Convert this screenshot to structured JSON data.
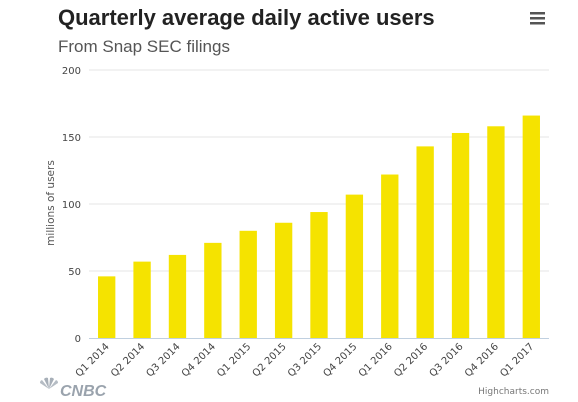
{
  "header": {
    "title": "Quarterly average daily active users",
    "subtitle": "From Snap SEC filings",
    "menu_icon": "hamburger-menu-icon"
  },
  "footer": {
    "brand": "CNBC",
    "brand_icon": "peacock-logo-icon",
    "credit": "Highcharts.com"
  },
  "colors": {
    "bar": "#f5e300",
    "grid": "#e6e6e6",
    "axis": "#c0d0e0"
  },
  "chart_data": {
    "type": "bar",
    "title": "Quarterly average daily active users",
    "subtitle": "From Snap SEC filings",
    "xlabel": "",
    "ylabel": "millions of users",
    "ylim": [
      0,
      200
    ],
    "yticks": [
      0,
      50,
      100,
      150,
      200
    ],
    "grid": true,
    "legend": "none",
    "categories": [
      "Q1 2014",
      "Q2 2014",
      "Q3 2014",
      "Q4 2014",
      "Q1 2015",
      "Q2 2015",
      "Q3 2015",
      "Q4 2015",
      "Q1 2016",
      "Q2 2016",
      "Q3 2016",
      "Q4 2016",
      "Q1 2017"
    ],
    "values": [
      46,
      57,
      62,
      71,
      80,
      86,
      94,
      107,
      122,
      143,
      153,
      158,
      166
    ]
  }
}
